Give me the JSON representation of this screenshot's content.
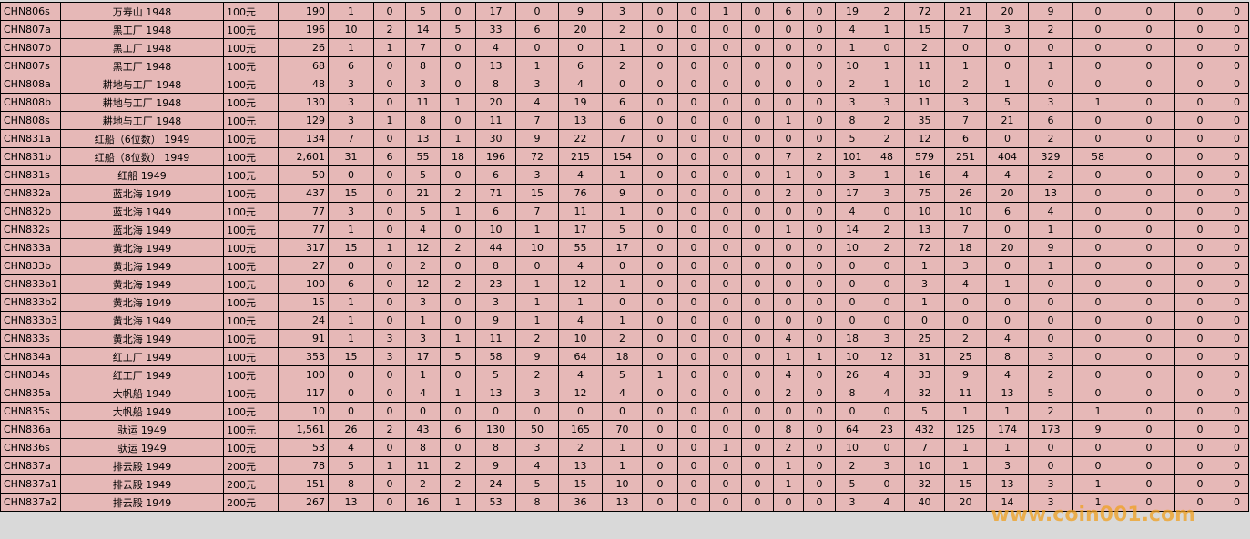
{
  "table": {
    "rows": [
      [
        "CHN806s",
        "万寿山  1948",
        "100元",
        190,
        [
          1,
          0,
          5,
          0,
          17,
          0,
          9,
          3,
          0,
          0,
          1,
          0,
          6,
          0,
          19,
          2,
          72,
          21,
          20,
          9,
          0,
          0,
          0,
          0
        ]
      ],
      [
        "CHN807a",
        "黑工厂  1948",
        "100元",
        196,
        [
          10,
          2,
          14,
          5,
          33,
          6,
          20,
          2,
          0,
          0,
          0,
          0,
          0,
          0,
          4,
          1,
          15,
          7,
          3,
          2,
          0,
          0,
          0,
          0
        ]
      ],
      [
        "CHN807b",
        "黑工厂  1948",
        "100元",
        26,
        [
          1,
          1,
          7,
          0,
          4,
          0,
          0,
          1,
          0,
          0,
          0,
          0,
          0,
          0,
          1,
          0,
          2,
          0,
          0,
          0,
          0,
          0,
          0,
          0
        ]
      ],
      [
        "CHN807s",
        "黑工厂  1948",
        "100元",
        68,
        [
          6,
          0,
          8,
          0,
          13,
          1,
          6,
          2,
          0,
          0,
          0,
          0,
          0,
          0,
          10,
          1,
          11,
          1,
          0,
          1,
          0,
          0,
          0,
          0
        ]
      ],
      [
        "CHN808a",
        "耕地与工厂  1948",
        "100元",
        48,
        [
          3,
          0,
          3,
          0,
          8,
          3,
          4,
          0,
          0,
          0,
          0,
          0,
          0,
          0,
          2,
          1,
          10,
          2,
          1,
          0,
          0,
          0,
          0,
          0
        ]
      ],
      [
        "CHN808b",
        "耕地与工厂  1948",
        "100元",
        130,
        [
          3,
          0,
          11,
          1,
          20,
          4,
          19,
          6,
          0,
          0,
          0,
          0,
          0,
          0,
          3,
          3,
          11,
          3,
          5,
          3,
          1,
          0,
          0,
          0
        ]
      ],
      [
        "CHN808s",
        "耕地与工厂  1948",
        "100元",
        129,
        [
          3,
          1,
          8,
          0,
          11,
          7,
          13,
          6,
          0,
          0,
          0,
          0,
          1,
          0,
          8,
          2,
          35,
          7,
          21,
          6,
          0,
          0,
          0,
          0
        ]
      ],
      [
        "CHN831a",
        "红船（6位数）  1949",
        "100元",
        134,
        [
          7,
          0,
          13,
          1,
          30,
          9,
          22,
          7,
          0,
          0,
          0,
          0,
          0,
          0,
          5,
          2,
          12,
          6,
          0,
          2,
          0,
          0,
          0,
          0
        ]
      ],
      [
        "CHN831b",
        "红船（8位数）  1949",
        "100元",
        "2,601",
        [
          31,
          6,
          55,
          18,
          196,
          72,
          215,
          154,
          0,
          0,
          0,
          0,
          7,
          2,
          101,
          48,
          579,
          251,
          404,
          329,
          58,
          0,
          0,
          0
        ]
      ],
      [
        "CHN831s",
        "红船  1949",
        "100元",
        50,
        [
          0,
          0,
          5,
          0,
          6,
          3,
          4,
          1,
          0,
          0,
          0,
          0,
          1,
          0,
          3,
          1,
          16,
          4,
          4,
          2,
          0,
          0,
          0,
          0
        ]
      ],
      [
        "CHN832a",
        "蓝北海  1949",
        "100元",
        437,
        [
          15,
          0,
          21,
          2,
          71,
          15,
          76,
          9,
          0,
          0,
          0,
          0,
          2,
          0,
          17,
          3,
          75,
          26,
          20,
          13,
          0,
          0,
          0,
          0
        ]
      ],
      [
        "CHN832b",
        "蓝北海  1949",
        "100元",
        77,
        [
          3,
          0,
          5,
          1,
          6,
          7,
          11,
          1,
          0,
          0,
          0,
          0,
          0,
          0,
          4,
          0,
          10,
          10,
          6,
          4,
          0,
          0,
          0,
          0
        ]
      ],
      [
        "CHN832s",
        "蓝北海  1949",
        "100元",
        77,
        [
          1,
          0,
          4,
          0,
          10,
          1,
          17,
          5,
          0,
          0,
          0,
          0,
          1,
          0,
          14,
          2,
          13,
          7,
          0,
          1,
          0,
          0,
          0,
          0
        ]
      ],
      [
        "CHN833a",
        "黄北海  1949",
        "100元",
        317,
        [
          15,
          1,
          12,
          2,
          44,
          10,
          55,
          17,
          0,
          0,
          0,
          0,
          0,
          0,
          10,
          2,
          72,
          18,
          20,
          9,
          0,
          0,
          0,
          0
        ]
      ],
      [
        "CHN833b",
        "黄北海  1949",
        "100元",
        27,
        [
          0,
          0,
          2,
          0,
          8,
          0,
          4,
          0,
          0,
          0,
          0,
          0,
          0,
          0,
          0,
          0,
          1,
          3,
          0,
          1,
          0,
          0,
          0,
          0
        ]
      ],
      [
        "CHN833b1",
        "黄北海  1949",
        "100元",
        100,
        [
          6,
          0,
          12,
          2,
          23,
          1,
          12,
          1,
          0,
          0,
          0,
          0,
          0,
          0,
          0,
          0,
          3,
          4,
          1,
          0,
          0,
          0,
          0,
          0
        ]
      ],
      [
        "CHN833b2",
        "黄北海  1949",
        "100元",
        15,
        [
          1,
          0,
          3,
          0,
          3,
          1,
          1,
          0,
          0,
          0,
          0,
          0,
          0,
          0,
          0,
          0,
          1,
          0,
          0,
          0,
          0,
          0,
          0,
          0
        ]
      ],
      [
        "CHN833b3",
        "黄北海  1949",
        "100元",
        24,
        [
          1,
          0,
          1,
          0,
          9,
          1,
          4,
          1,
          0,
          0,
          0,
          0,
          0,
          0,
          0,
          0,
          0,
          0,
          0,
          0,
          0,
          0,
          0,
          0
        ]
      ],
      [
        "CHN833s",
        "黄北海  1949",
        "100元",
        91,
        [
          1,
          3,
          3,
          1,
          11,
          2,
          10,
          2,
          0,
          0,
          0,
          0,
          4,
          0,
          18,
          3,
          25,
          2,
          4,
          0,
          0,
          0,
          0,
          0
        ]
      ],
      [
        "CHN834a",
        "红工厂  1949",
        "100元",
        353,
        [
          15,
          3,
          17,
          5,
          58,
          9,
          64,
          18,
          0,
          0,
          0,
          0,
          1,
          1,
          10,
          12,
          31,
          25,
          8,
          3,
          0,
          0,
          0,
          0
        ]
      ],
      [
        "CHN834s",
        "红工厂  1949",
        "100元",
        100,
        [
          0,
          0,
          1,
          0,
          5,
          2,
          4,
          5,
          1,
          0,
          0,
          0,
          4,
          0,
          26,
          4,
          33,
          9,
          4,
          2,
          0,
          0,
          0,
          0
        ]
      ],
      [
        "CHN835a",
        "大帆船  1949",
        "100元",
        117,
        [
          0,
          0,
          4,
          1,
          13,
          3,
          12,
          4,
          0,
          0,
          0,
          0,
          2,
          0,
          8,
          4,
          32,
          11,
          13,
          5,
          0,
          0,
          0,
          0
        ]
      ],
      [
        "CHN835s",
        "大帆船  1949",
        "100元",
        10,
        [
          0,
          0,
          0,
          0,
          0,
          0,
          0,
          0,
          0,
          0,
          0,
          0,
          0,
          0,
          0,
          0,
          5,
          1,
          1,
          2,
          1,
          0,
          0,
          0
        ]
      ],
      [
        "CHN836a",
        "驮运  1949",
        "100元",
        "1,561",
        [
          26,
          2,
          43,
          6,
          130,
          50,
          165,
          70,
          0,
          0,
          0,
          0,
          8,
          0,
          64,
          23,
          432,
          125,
          174,
          173,
          9,
          0,
          0,
          0
        ]
      ],
      [
        "CHN836s",
        "驮运  1949",
        "100元",
        53,
        [
          4,
          0,
          8,
          0,
          8,
          3,
          2,
          1,
          0,
          0,
          1,
          0,
          2,
          0,
          10,
          0,
          7,
          1,
          1,
          0,
          0,
          0,
          0,
          0
        ]
      ],
      [
        "CHN837a",
        "排云殿  1949",
        "200元",
        78,
        [
          5,
          1,
          11,
          2,
          9,
          4,
          13,
          1,
          0,
          0,
          0,
          0,
          1,
          0,
          2,
          3,
          10,
          1,
          3,
          0,
          0,
          0,
          0,
          0
        ]
      ],
      [
        "CHN837a1",
        "排云殿  1949",
        "200元",
        151,
        [
          8,
          0,
          2,
          2,
          24,
          5,
          15,
          10,
          0,
          0,
          0,
          0,
          1,
          0,
          5,
          0,
          32,
          15,
          13,
          3,
          1,
          0,
          0,
          0
        ]
      ],
      [
        "CHN837a2",
        "排云殿  1949",
        "200元",
        267,
        [
          13,
          0,
          16,
          1,
          53,
          8,
          36,
          13,
          0,
          0,
          0,
          0,
          0,
          0,
          3,
          4,
          40,
          20,
          14,
          3,
          1,
          0,
          0,
          0
        ]
      ]
    ]
  },
  "watermark": "www.coin001.com"
}
